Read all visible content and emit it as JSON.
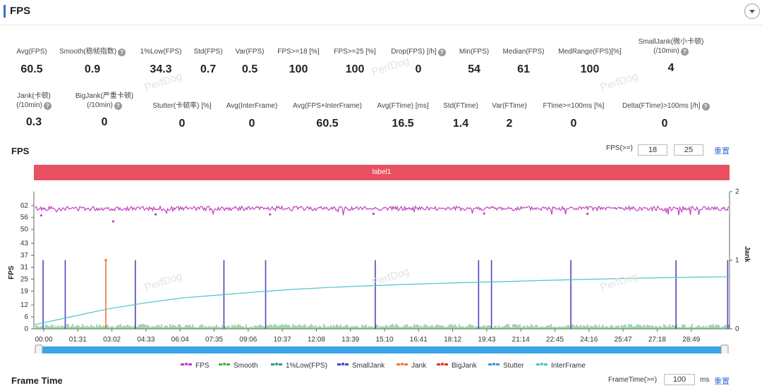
{
  "header": {
    "title": "FPS"
  },
  "stats_row1": [
    {
      "label": "Avg(FPS)",
      "value": "60.5",
      "help": false
    },
    {
      "label": "Smooth(稳帧指数)",
      "value": "0.9",
      "help": true
    },
    {
      "label": "1%Low(FPS)",
      "value": "34.3",
      "help": false
    },
    {
      "label": "Std(FPS)",
      "value": "0.7",
      "help": false
    },
    {
      "label": "Var(FPS)",
      "value": "0.5",
      "help": false
    },
    {
      "label": "FPS>=18 [%]",
      "value": "100",
      "help": false
    },
    {
      "label": "FPS>=25 [%]",
      "value": "100",
      "help": false
    },
    {
      "label": "Drop(FPS) [/h]",
      "value": "0",
      "help": true
    },
    {
      "label": "Min(FPS)",
      "value": "54",
      "help": false
    },
    {
      "label": "Median(FPS)",
      "value": "61",
      "help": false
    },
    {
      "label": "MedRange(FPS)[%]",
      "value": "100",
      "help": false
    },
    {
      "label": "SmallJank(微小卡顿)",
      "label2": "(/10min)",
      "value": "4",
      "help": true
    }
  ],
  "stats_row2": [
    {
      "label": "Jank(卡顿)",
      "label2": "(/10min)",
      "value": "0.3",
      "help": true
    },
    {
      "label": "BigJank(严重卡顿)",
      "label2": "(/10min)",
      "value": "0",
      "help": true
    },
    {
      "label": "Stutter(卡顿率) [%]",
      "value": "0",
      "help": false
    },
    {
      "label": "Avg(InterFrame)",
      "value": "0",
      "help": false
    },
    {
      "label": "Avg(FPS+InterFrame)",
      "value": "60.5",
      "help": false
    },
    {
      "label": "Avg(FTime) [ms]",
      "value": "16.5",
      "help": false
    },
    {
      "label": "Std(FTime)",
      "value": "1.4",
      "help": false
    },
    {
      "label": "Var(FTime)",
      "value": "2",
      "help": false
    },
    {
      "label": "FTime>=100ms [%]",
      "value": "0",
      "help": false
    },
    {
      "label": "Delta(FTime)>100ms [/h]",
      "value": "0",
      "help": true
    }
  ],
  "fps_section": {
    "title": "FPS",
    "threshold_label": "FPS(>=)",
    "threshold1": "18",
    "threshold2": "25",
    "reset": "重置",
    "band_label": "label1"
  },
  "frame_time_section": {
    "title": "Frame Time",
    "threshold_label": "FrameTime(>=)",
    "threshold": "100",
    "unit": "ms",
    "reset": "重置"
  },
  "watermark": "PerfDog",
  "colors": {
    "accent": "#3a6fd6",
    "fps": "#c040c0",
    "smooth": "#44aa55",
    "low1": "#2a9a8a",
    "smalljank": "#4848b8",
    "jank": "#ee7733",
    "bigjank": "#dd3333",
    "stutter": "#4a90d9",
    "interframe": "#4ec3c8",
    "band": "#e95163",
    "slider": "#3ba4e8"
  },
  "chart_data": {
    "type": "line",
    "ylabel": "FPS",
    "y2label": "Jank",
    "yticks": [
      0,
      6,
      12,
      19,
      25,
      31,
      37,
      43,
      50,
      56,
      62
    ],
    "y2ticks": [
      0,
      1,
      2
    ],
    "xticks": [
      "00:00",
      "01:31",
      "03:02",
      "04:33",
      "06:04",
      "07:35",
      "09:06",
      "10:37",
      "12:08",
      "13:39",
      "15:10",
      "16:41",
      "18:12",
      "19:43",
      "21:14",
      "22:45",
      "24:16",
      "25:47",
      "27:18",
      "28:49"
    ],
    "x_range_seconds": [
      0,
      1820
    ],
    "legend": [
      "FPS",
      "Smooth",
      "1%Low(FPS)",
      "SmallJank",
      "Jank",
      "BigJank",
      "Stutter",
      "InterFrame"
    ],
    "fps_mean": 60.5,
    "fps_min": 54,
    "smalljank_times_s": [
      25,
      85,
      275,
      515,
      628,
      925,
      1205,
      1240,
      1455,
      1740,
      1880
    ],
    "jank_times_s": [
      195
    ],
    "jank_value": 1,
    "interframe_curve": [
      [
        0,
        2
      ],
      [
        100,
        6
      ],
      [
        200,
        10
      ],
      [
        300,
        13
      ],
      [
        400,
        15.5
      ],
      [
        500,
        17
      ],
      [
        600,
        18.5
      ],
      [
        700,
        19.8
      ],
      [
        800,
        20.8
      ],
      [
        900,
        21.6
      ],
      [
        1000,
        22.3
      ],
      [
        1100,
        22.9
      ],
      [
        1200,
        23.4
      ],
      [
        1300,
        23.9
      ],
      [
        1400,
        24.4
      ],
      [
        1500,
        24.9
      ],
      [
        1600,
        25.3
      ],
      [
        1700,
        25.7
      ],
      [
        1800,
        26
      ],
      [
        1885,
        26.2
      ]
    ]
  }
}
